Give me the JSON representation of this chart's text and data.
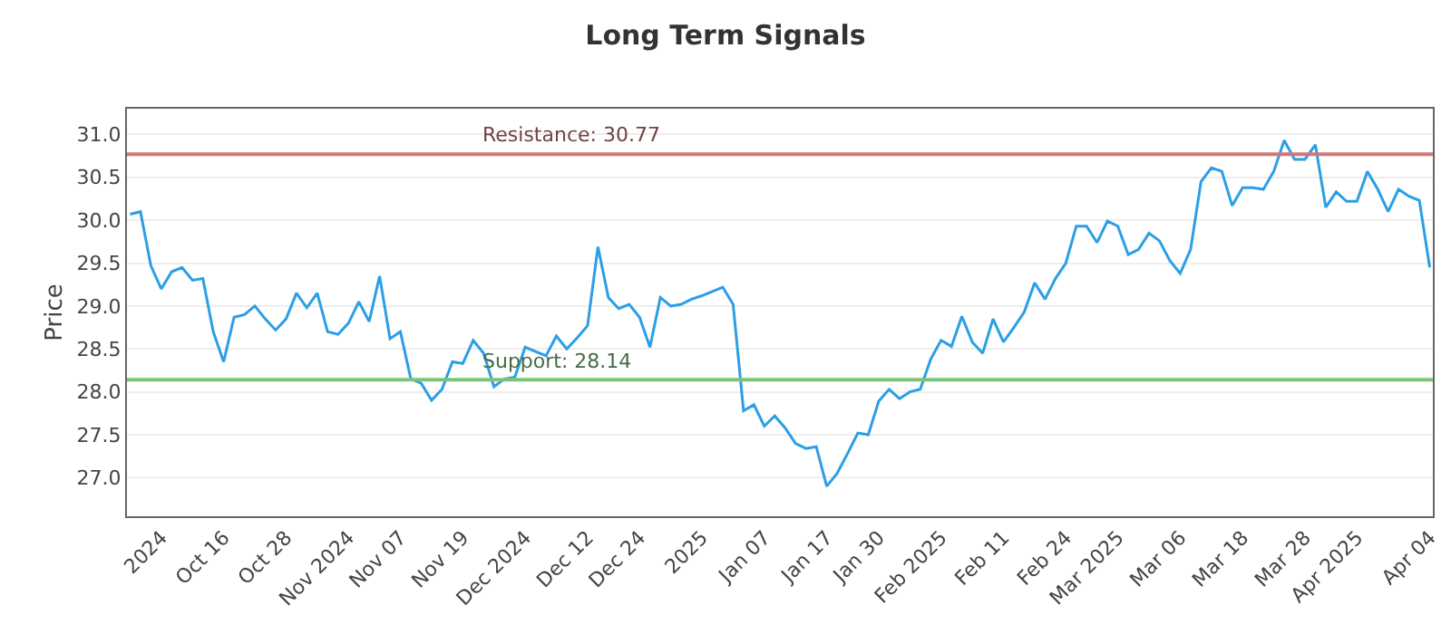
{
  "chart_data": {
    "type": "line",
    "title": "Long Term Signals",
    "ylabel": "Price",
    "categories": [
      null,
      null,
      null,
      "2024",
      null,
      null,
      null,
      null,
      null,
      "Oct 16",
      null,
      null,
      null,
      null,
      null,
      "Oct 28",
      null,
      null,
      null,
      null,
      null,
      "Nov 2024",
      null,
      null,
      null,
      null,
      "Nov 07",
      null,
      null,
      null,
      null,
      null,
      "Nov 19",
      null,
      null,
      null,
      null,
      null,
      "Dec 2024",
      null,
      null,
      null,
      null,
      null,
      "Dec 12",
      null,
      null,
      null,
      null,
      "Dec 24",
      null,
      null,
      null,
      null,
      null,
      "2025",
      null,
      null,
      null,
      null,
      null,
      "Jan 07",
      null,
      null,
      null,
      null,
      null,
      "Jan 17",
      null,
      null,
      null,
      null,
      "Jan 30",
      null,
      null,
      null,
      null,
      null,
      "Feb 2025",
      null,
      null,
      null,
      null,
      null,
      "Feb 11",
      null,
      null,
      null,
      null,
      null,
      "Feb 24",
      null,
      null,
      null,
      null,
      "Mar 2025",
      null,
      null,
      null,
      null,
      null,
      "Mar 06",
      null,
      null,
      null,
      null,
      null,
      "Mar 18",
      null,
      null,
      null,
      null,
      null,
      "Mar 28",
      null,
      null,
      null,
      null,
      "Apr 2025",
      null,
      null,
      null,
      null,
      null,
      null,
      "Apr 04"
    ],
    "series": [
      {
        "color": "#2b9fe6",
        "values": [
          30.07,
          30.1,
          29.47,
          29.2,
          29.4,
          29.45,
          29.3,
          29.32,
          28.7,
          28.35,
          28.87,
          28.9,
          29.0,
          28.85,
          28.72,
          28.85,
          29.15,
          28.98,
          29.15,
          28.7,
          28.67,
          28.8,
          29.05,
          28.82,
          29.35,
          28.62,
          28.7,
          28.15,
          28.1,
          27.9,
          28.03,
          28.35,
          28.33,
          28.6,
          28.45,
          28.06,
          28.15,
          28.17,
          28.52,
          28.47,
          28.42,
          28.65,
          28.5,
          28.63,
          28.77,
          29.69,
          29.1,
          28.97,
          29.02,
          28.87,
          28.52,
          29.1,
          29.0,
          29.02,
          29.08,
          29.12,
          29.17,
          29.22,
          29.02,
          27.78,
          27.85,
          27.6,
          27.72,
          27.58,
          27.4,
          27.34,
          27.36,
          26.9,
          27.05,
          27.28,
          27.52,
          27.5,
          27.89,
          28.03,
          27.92,
          28.0,
          28.03,
          28.38,
          28.6,
          28.53,
          28.88,
          28.58,
          28.45,
          28.85,
          28.58,
          28.75,
          28.93,
          29.27,
          29.08,
          29.32,
          29.5,
          29.93,
          29.93,
          29.74,
          29.99,
          29.93,
          29.6,
          29.66,
          29.85,
          29.76,
          29.53,
          29.38,
          29.66,
          30.45,
          30.61,
          30.57,
          30.17,
          30.38,
          30.38,
          30.36,
          30.57,
          30.93,
          30.71,
          30.71,
          30.88,
          30.15,
          30.33,
          30.22,
          30.22,
          30.57,
          30.36,
          30.1,
          30.36,
          30.28,
          30.23,
          29.45
        ]
      }
    ],
    "ylim": [
      26.55,
      31.3
    ],
    "yticks": [
      {
        "value": 27,
        "label": "27.0"
      },
      {
        "value": 27.5,
        "label": "27.5"
      },
      {
        "value": 28,
        "label": "28.0"
      },
      {
        "value": 28.5,
        "label": "28.5"
      },
      {
        "value": 29,
        "label": "29.0"
      },
      {
        "value": 29.5,
        "label": "29.5"
      },
      {
        "value": 30,
        "label": "30.0"
      },
      {
        "value": 30.5,
        "label": "30.5"
      },
      {
        "value": 31,
        "label": "31.0"
      }
    ],
    "ref_lines": [
      {
        "axis": "y",
        "value": 30.77,
        "label": "Resistance: 30.77",
        "color": "#d07878"
      },
      {
        "axis": "y",
        "value": 28.14,
        "label": "Support: 28.14",
        "color": "#7cc47c"
      }
    ],
    "grid": "y",
    "marker": "none",
    "line_style": "solid"
  }
}
